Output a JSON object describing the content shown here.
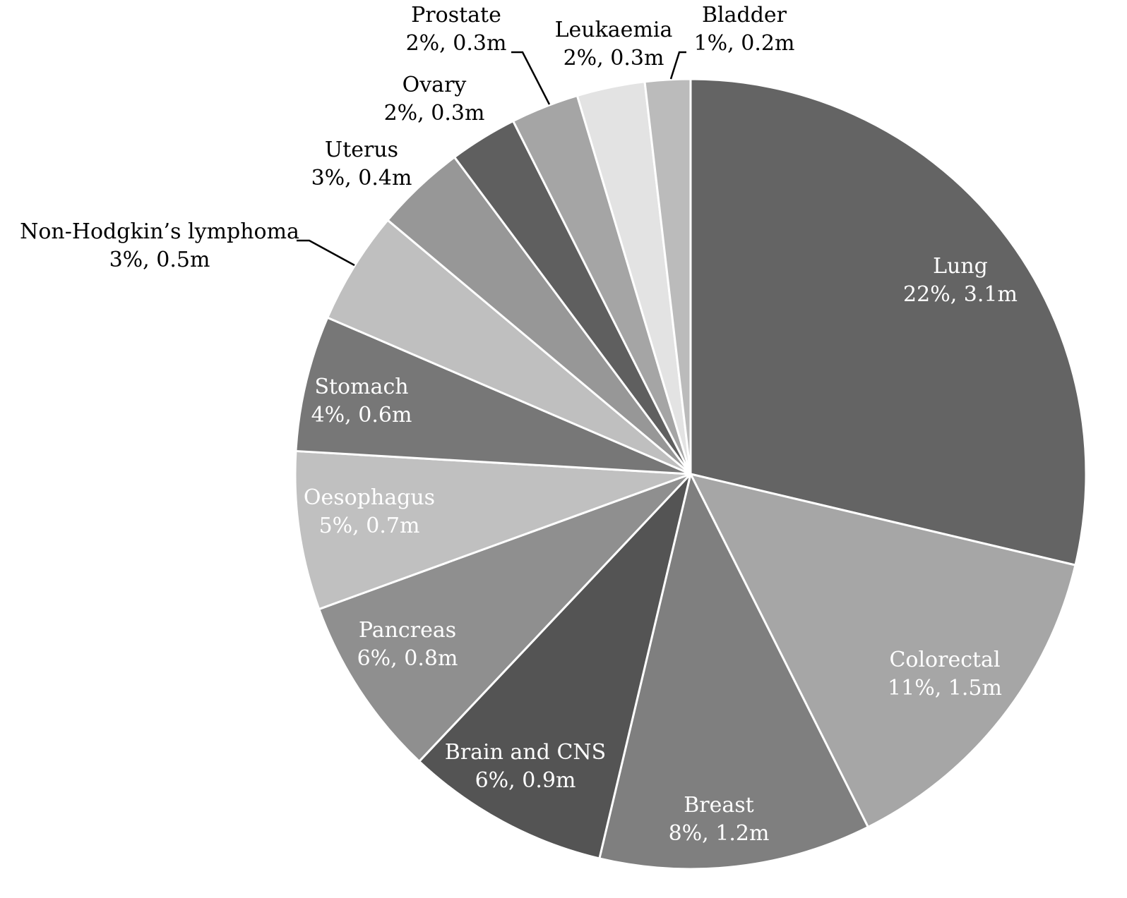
{
  "chart_data": {
    "type": "pie",
    "title": "",
    "start_angle_deg": 0,
    "direction": "clockwise",
    "slices": [
      {
        "name": "Lung",
        "percent_label": "22%",
        "value_label": "3.1m",
        "value": 3.1,
        "color": "#646464",
        "label_color": "#ffffff"
      },
      {
        "name": "Colorectal",
        "percent_label": "11%",
        "value_label": "1.5m",
        "value": 1.5,
        "color": "#a6a6a6",
        "label_color": "#ffffff"
      },
      {
        "name": "Breast",
        "percent_label": "8%",
        "value_label": "1.2m",
        "value": 1.2,
        "color": "#7f7f7f",
        "label_color": "#ffffff"
      },
      {
        "name": "Brain and CNS",
        "percent_label": "6%",
        "value_label": "0.9m",
        "value": 0.9,
        "color": "#545454",
        "label_color": "#ffffff"
      },
      {
        "name": "Pancreas",
        "percent_label": "6%",
        "value_label": "0.8m",
        "value": 0.8,
        "color": "#8f8f8f",
        "label_color": "#ffffff"
      },
      {
        "name": "Oesophagus",
        "percent_label": "5%",
        "value_label": "0.7m",
        "value": 0.7,
        "color": "#c0c0c0",
        "label_color": "#ffffff"
      },
      {
        "name": "Stomach",
        "percent_label": "4%",
        "value_label": "0.6m",
        "value": 0.6,
        "color": "#777777",
        "label_color": "#ffffff"
      },
      {
        "name": "Non-Hodgkin’s lymphoma",
        "percent_label": "3%",
        "value_label": "0.5m",
        "value": 0.5,
        "color": "#bfbfbf",
        "label_color": "#000000"
      },
      {
        "name": "Uterus",
        "percent_label": "3%",
        "value_label": "0.4m",
        "value": 0.4,
        "color": "#979797",
        "label_color": "#000000"
      },
      {
        "name": "Ovary",
        "percent_label": "2%",
        "value_label": "0.3m",
        "value": 0.3,
        "color": "#5f5f5f",
        "label_color": "#000000"
      },
      {
        "name": "Prostate",
        "percent_label": "2%",
        "value_label": "0.3m",
        "value": 0.3,
        "color": "#a5a5a5",
        "label_color": "#000000"
      },
      {
        "name": "Leukaemia",
        "percent_label": "2%",
        "value_label": "0.3m",
        "value": 0.3,
        "color": "#e3e3e3",
        "label_color": "#000000"
      },
      {
        "name": "Bladder",
        "percent_label": "1%",
        "value_label": "0.2m",
        "value": 0.2,
        "color": "#bbbbbb",
        "label_color": "#000000"
      }
    ]
  }
}
